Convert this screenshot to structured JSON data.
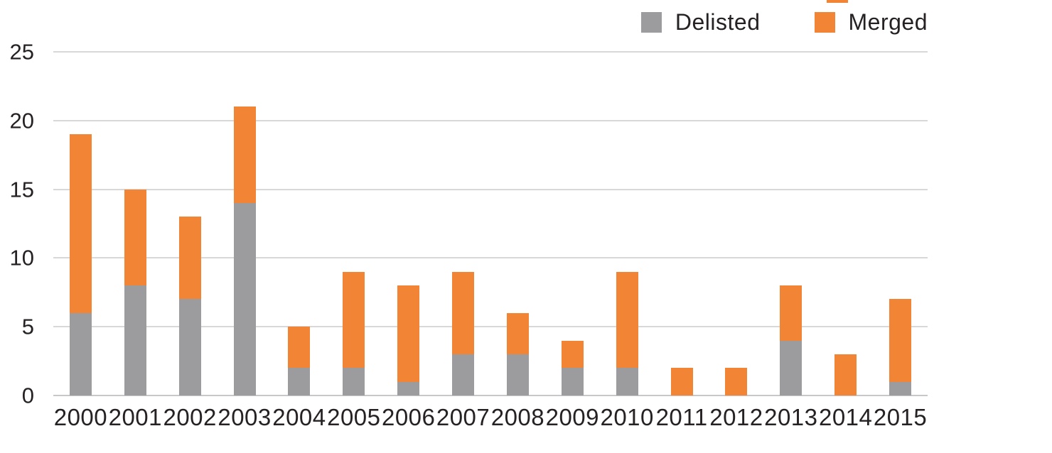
{
  "chart_data": {
    "type": "bar",
    "stacked": true,
    "title": "",
    "xlabel": "",
    "ylabel": "",
    "categories": [
      "2000",
      "2001",
      "2002",
      "2003",
      "2004",
      "2005",
      "2006",
      "2007",
      "2008",
      "2009",
      "2010",
      "2011",
      "2012",
      "2013",
      "2014",
      "2015"
    ],
    "series": [
      {
        "name": "Delisted",
        "color": "#9c9c9e",
        "values": [
          6,
          8,
          7,
          14,
          2,
          2,
          1,
          3,
          3,
          2,
          2,
          0,
          0,
          4,
          0,
          1
        ]
      },
      {
        "name": "Merged",
        "color": "#f28435",
        "values": [
          13,
          7,
          6,
          7,
          3,
          7,
          7,
          6,
          3,
          2,
          7,
          2,
          2,
          4,
          3,
          6
        ]
      }
    ],
    "totals": [
      19,
      15,
      13,
      21,
      5,
      9,
      8,
      9,
      6,
      4,
      9,
      2,
      2,
      8,
      3,
      7
    ],
    "ylim": [
      0,
      25
    ],
    "yticks": [
      0,
      5,
      10,
      15,
      20,
      25
    ],
    "grid": true,
    "legend_position": "top-right",
    "gridline_color": "#d8d8d8",
    "text_color": "#262223"
  }
}
